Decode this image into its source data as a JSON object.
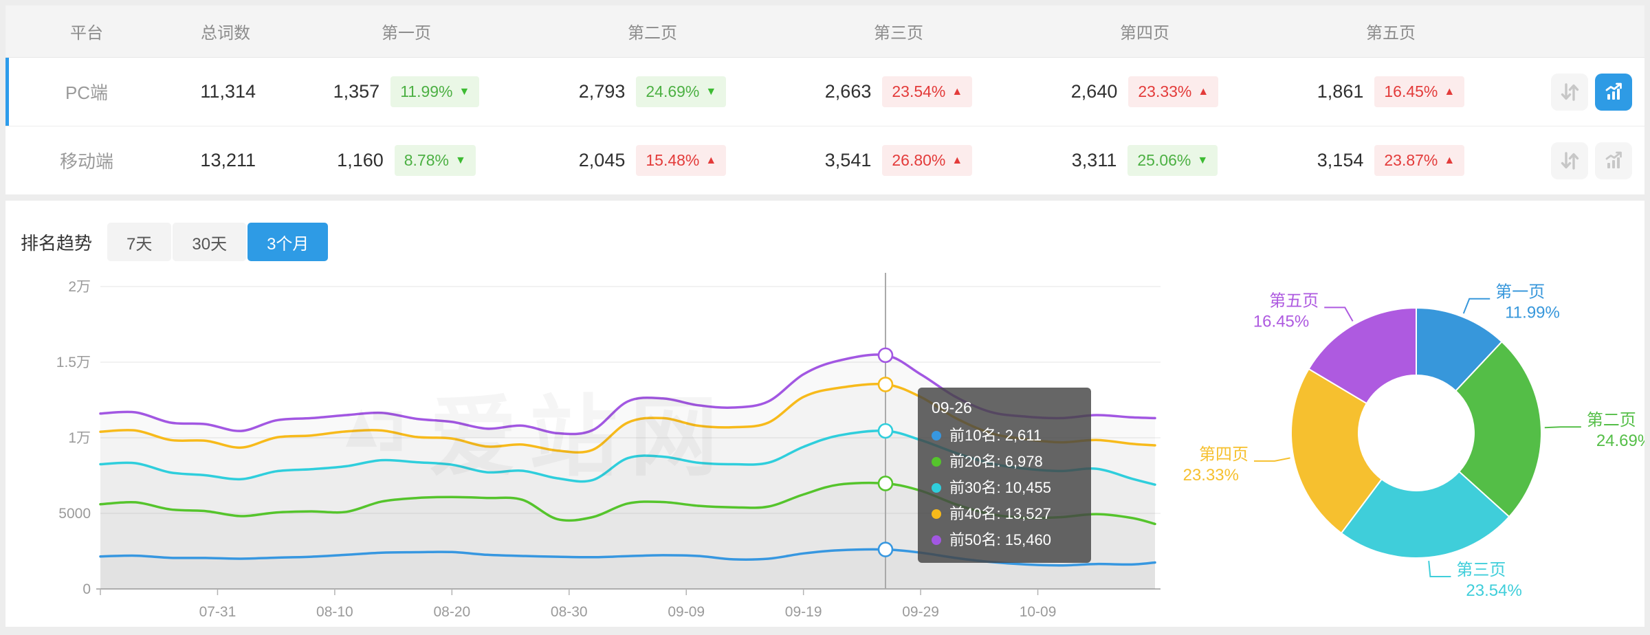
{
  "table": {
    "columns": [
      "平台",
      "总词数",
      "第一页",
      "第二页",
      "第三页",
      "第四页",
      "第五页"
    ],
    "rows": [
      {
        "platform": "PC端",
        "total": "11,314",
        "selected": true,
        "pages": [
          {
            "count": "1,357",
            "pct": "11.99%",
            "direction": "down",
            "tone": "good"
          },
          {
            "count": "2,793",
            "pct": "24.69%",
            "direction": "down",
            "tone": "good"
          },
          {
            "count": "2,663",
            "pct": "23.54%",
            "direction": "up",
            "tone": "bad"
          },
          {
            "count": "2,640",
            "pct": "23.33%",
            "direction": "up",
            "tone": "bad"
          },
          {
            "count": "1,861",
            "pct": "16.45%",
            "direction": "up",
            "tone": "bad"
          }
        ],
        "actions": {
          "compare_active": false,
          "trend_active": true
        }
      },
      {
        "platform": "移动端",
        "total": "13,211",
        "selected": false,
        "pages": [
          {
            "count": "1,160",
            "pct": "8.78%",
            "direction": "down",
            "tone": "good"
          },
          {
            "count": "2,045",
            "pct": "15.48%",
            "direction": "up",
            "tone": "bad"
          },
          {
            "count": "3,541",
            "pct": "26.80%",
            "direction": "up",
            "tone": "bad"
          },
          {
            "count": "3,311",
            "pct": "25.06%",
            "direction": "down",
            "tone": "good"
          },
          {
            "count": "3,154",
            "pct": "23.87%",
            "direction": "up",
            "tone": "bad"
          }
        ],
        "actions": {
          "compare_active": false,
          "trend_active": false
        }
      }
    ],
    "icons": {
      "compare": "transfer-icon",
      "trend": "trend-chart-icon"
    }
  },
  "trend": {
    "title": "排名趋势",
    "tabs": [
      {
        "label": "7天",
        "active": false
      },
      {
        "label": "30天",
        "active": false
      },
      {
        "label": "3个月",
        "active": true
      }
    ]
  },
  "watermark": "爱站网",
  "tooltip": {
    "title": "09-26",
    "items": [
      {
        "label": "前10名",
        "value": "2,611",
        "color": "#3797e0"
      },
      {
        "label": "前20名",
        "value": "6,978",
        "color": "#55c42c"
      },
      {
        "label": "前30名",
        "value": "10,455",
        "color": "#2fcedc"
      },
      {
        "label": "前40名",
        "value": "13,527",
        "color": "#f7ba1b"
      },
      {
        "label": "前50名",
        "value": "15,460",
        "color": "#a257e2"
      }
    ]
  },
  "chart_data": [
    {
      "type": "line",
      "title": "排名趋势 3个月",
      "x": [
        "07-21",
        "07-24",
        "07-27",
        "07-30",
        "08-02",
        "08-05",
        "08-08",
        "08-11",
        "08-14",
        "08-17",
        "08-20",
        "08-23",
        "08-26",
        "08-29",
        "09-01",
        "09-04",
        "09-07",
        "09-10",
        "09-13",
        "09-16",
        "09-19",
        "09-22",
        "09-26",
        "09-29",
        "10-02",
        "10-05",
        "10-08",
        "10-11",
        "10-14",
        "10-17",
        "10-19"
      ],
      "series": [
        {
          "name": "前10名",
          "color": "#3797e0",
          "values": [
            2150,
            2200,
            2060,
            2050,
            2000,
            2070,
            2130,
            2260,
            2400,
            2430,
            2440,
            2260,
            2180,
            2130,
            2100,
            2170,
            2230,
            2180,
            1960,
            2000,
            2350,
            2560,
            2611,
            2400,
            2050,
            1780,
            1620,
            1560,
            1650,
            1620,
            1750
          ]
        },
        {
          "name": "前20名",
          "color": "#55c42c",
          "values": [
            5600,
            5730,
            5260,
            5150,
            4820,
            5060,
            5130,
            5100,
            5780,
            6020,
            6080,
            6020,
            5900,
            4620,
            4750,
            5650,
            5750,
            5500,
            5400,
            5450,
            6250,
            6900,
            6978,
            6500,
            5600,
            4950,
            4700,
            4750,
            4950,
            4700,
            4300
          ]
        },
        {
          "name": "前30名",
          "color": "#2fcedc",
          "values": [
            8250,
            8320,
            7700,
            7520,
            7260,
            7780,
            7920,
            8120,
            8520,
            8380,
            8220,
            7720,
            7820,
            7320,
            7200,
            8650,
            8750,
            8350,
            8250,
            8350,
            9400,
            10150,
            10455,
            9850,
            9000,
            8300,
            7950,
            7800,
            7950,
            7300,
            6900
          ]
        },
        {
          "name": "前40名",
          "color": "#f7ba1b",
          "values": [
            10400,
            10480,
            9850,
            9800,
            9350,
            10020,
            10150,
            10420,
            10480,
            10050,
            9950,
            9420,
            9550,
            9150,
            9200,
            11000,
            11300,
            10800,
            10700,
            11000,
            12700,
            13300,
            13527,
            12700,
            11300,
            10300,
            9900,
            9700,
            9850,
            9600,
            9500
          ]
        },
        {
          "name": "前50名",
          "color": "#a257e2",
          "values": [
            11600,
            11680,
            11000,
            10900,
            10450,
            11150,
            11300,
            11500,
            11650,
            11250,
            11050,
            10600,
            10800,
            10300,
            10500,
            12400,
            12600,
            12150,
            12000,
            12400,
            14200,
            15100,
            15460,
            14200,
            12700,
            11700,
            11400,
            11300,
            11500,
            11350,
            11300
          ]
        }
      ],
      "ylim": [
        0,
        20000
      ],
      "yticks": [
        {
          "v": 0,
          "label": "0"
        },
        {
          "v": 5000,
          "label": "5000"
        },
        {
          "v": 10000,
          "label": "1万"
        },
        {
          "v": 15000,
          "label": "1.5万"
        },
        {
          "v": 20000,
          "label": "2万"
        }
      ],
      "xticks": [
        "07-31",
        "08-10",
        "08-20",
        "08-30",
        "09-09",
        "09-19",
        "09-29",
        "10-09"
      ],
      "crosshair_x": "09-26",
      "grid": true,
      "legend": "none"
    },
    {
      "type": "pie",
      "donut": true,
      "slices": [
        {
          "label": "第一页",
          "pct": 11.99,
          "color": "#3797db"
        },
        {
          "label": "第二页",
          "pct": 24.69,
          "color": "#54be47"
        },
        {
          "label": "第三页",
          "pct": 23.54,
          "color": "#3fceda"
        },
        {
          "label": "第四页",
          "pct": 23.33,
          "color": "#f6c02f"
        },
        {
          "label": "第五页",
          "pct": 16.45,
          "color": "#ae5ae0"
        }
      ]
    }
  ]
}
